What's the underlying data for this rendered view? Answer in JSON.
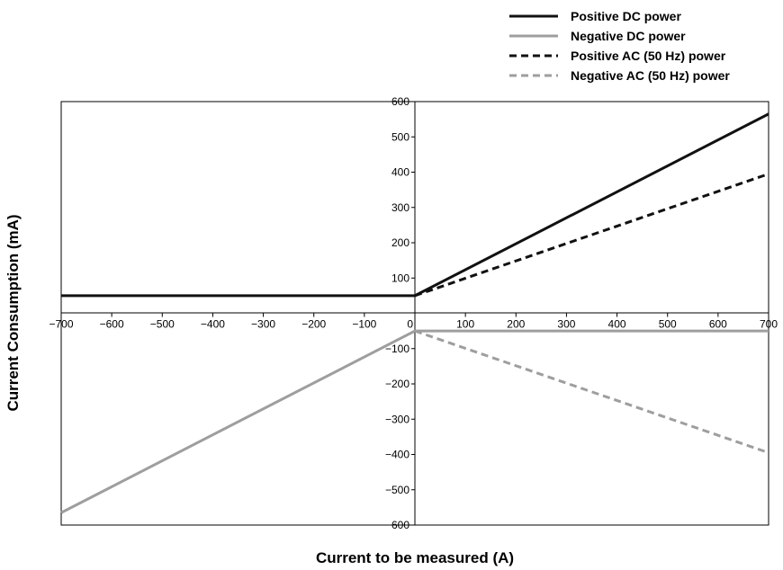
{
  "chart_data": {
    "type": "line",
    "title": "",
    "xlabel": "Current to be measured (A)",
    "ylabel": "Current Consumption (mA)",
    "xlim": [
      -700,
      700
    ],
    "ylim": [
      -600,
      600
    ],
    "xticks": [
      -700,
      -600,
      -500,
      -400,
      -300,
      -200,
      -100,
      0,
      100,
      200,
      300,
      400,
      500,
      600,
      700
    ],
    "yticks": [
      -600,
      -500,
      -400,
      -300,
      -200,
      -100,
      0,
      100,
      200,
      300,
      400,
      500,
      600
    ],
    "grid": false,
    "legend_position": "top-right",
    "series": [
      {
        "name": "Positive DC power",
        "color": "#111111",
        "dash": "solid",
        "x": [
          -700,
          0,
          700
        ],
        "y": [
          50,
          50,
          565
        ]
      },
      {
        "name": "Negative DC power",
        "color": "#9e9e9e",
        "dash": "solid",
        "x": [
          -700,
          0,
          700
        ],
        "y": [
          -565,
          -50,
          -50
        ]
      },
      {
        "name": "Positive AC (50 Hz) power",
        "color": "#111111",
        "dash": "dashed",
        "x": [
          0,
          700
        ],
        "y": [
          50,
          395
        ]
      },
      {
        "name": "Negative AC (50 Hz) power",
        "color": "#9e9e9e",
        "dash": "dashed",
        "x": [
          0,
          700
        ],
        "y": [
          -50,
          -395
        ]
      }
    ]
  }
}
